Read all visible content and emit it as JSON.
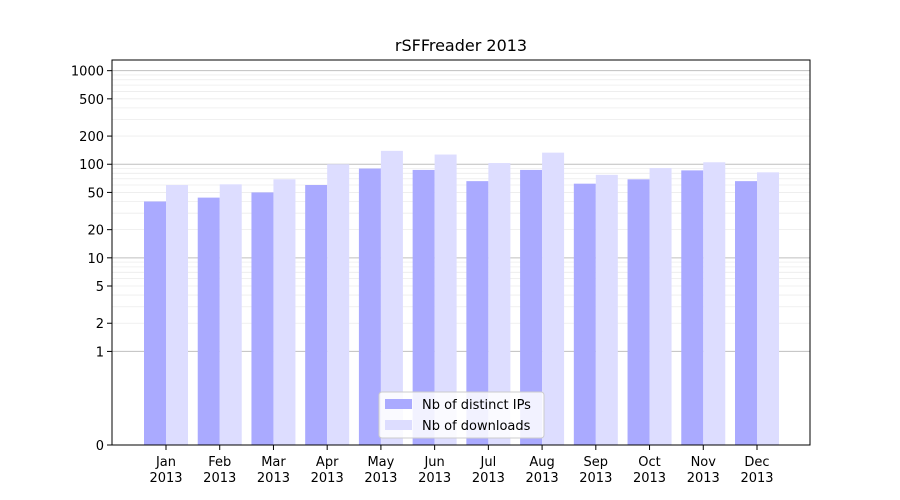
{
  "chart_data": {
    "type": "bar",
    "title": "rSFFreader 2013",
    "xlabel": "",
    "ylabel": "",
    "y_scale": "symlog",
    "yticks": [
      0,
      1,
      2,
      5,
      10,
      20,
      50,
      100,
      200,
      500,
      1000
    ],
    "ylim": [
      0,
      1300
    ],
    "grid": "horizontal",
    "legend_position": "bottom-center",
    "categories": [
      {
        "month": "Jan",
        "year": "2013"
      },
      {
        "month": "Feb",
        "year": "2013"
      },
      {
        "month": "Mar",
        "year": "2013"
      },
      {
        "month": "Apr",
        "year": "2013"
      },
      {
        "month": "May",
        "year": "2013"
      },
      {
        "month": "Jun",
        "year": "2013"
      },
      {
        "month": "Jul",
        "year": "2013"
      },
      {
        "month": "Aug",
        "year": "2013"
      },
      {
        "month": "Sep",
        "year": "2013"
      },
      {
        "month": "Oct",
        "year": "2013"
      },
      {
        "month": "Nov",
        "year": "2013"
      },
      {
        "month": "Dec",
        "year": "2013"
      }
    ],
    "series": [
      {
        "name": "Nb of distinct IPs",
        "color": "#aaaaff",
        "values": [
          40,
          44,
          50,
          60,
          90,
          87,
          66,
          87,
          62,
          69,
          86,
          66
        ]
      },
      {
        "name": "Nb of downloads",
        "color": "#ddddff",
        "values": [
          60,
          61,
          69,
          100,
          139,
          127,
          103,
          133,
          77,
          91,
          105,
          82
        ]
      }
    ]
  }
}
